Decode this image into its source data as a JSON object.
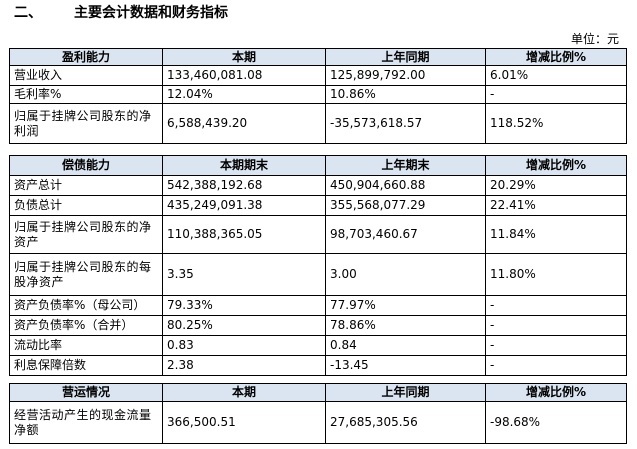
{
  "section_title": {
    "number": "二、",
    "text": "主要会计数据和财务指标"
  },
  "unit_label": "单位：元",
  "profit": {
    "headers": [
      "盈利能力",
      "本期",
      "上年同期",
      "增减比例%"
    ],
    "rows": [
      [
        "营业收入",
        "133,460,081.08",
        "125,899,792.00",
        "6.01%"
      ],
      [
        "毛利率%",
        "12.04%",
        "10.86%",
        "-"
      ],
      [
        "归属于挂牌公司股东的净利润",
        "6,588,439.20",
        "-35,573,618.57",
        "118.52%"
      ]
    ]
  },
  "solvency": {
    "headers": [
      "偿债能力",
      "本期期末",
      "上年期末",
      "增减比例%"
    ],
    "rows": [
      [
        "资产总计",
        "542,388,192.68",
        "450,904,660.88",
        "20.29%"
      ],
      [
        "负债总计",
        "435,249,091.38",
        "355,568,077.29",
        "22.41%"
      ],
      [
        "归属于挂牌公司股东的净资产",
        "110,388,365.05",
        "98,703,460.67",
        "11.84%"
      ],
      [
        "归属于挂牌公司股东的每股净资产",
        "3.35",
        "3.00",
        "11.80%"
      ],
      [
        "资产负债率%（母公司）",
        "79.33%",
        "77.97%",
        "-"
      ],
      [
        "资产负债率%（合并）",
        "80.25%",
        "78.86%",
        "-"
      ],
      [
        "流动比率",
        "0.83",
        "0.84",
        "-"
      ],
      [
        "利息保障倍数",
        "2.38",
        "-13.45",
        "-"
      ]
    ]
  },
  "operation": {
    "headers": [
      "营运情况",
      "本期",
      "上年同期",
      "增减比例%"
    ],
    "rows": [
      [
        "经营活动产生的现金流量净额",
        "366,500.51",
        "27,685,305.56",
        "-98.68%"
      ]
    ]
  }
}
